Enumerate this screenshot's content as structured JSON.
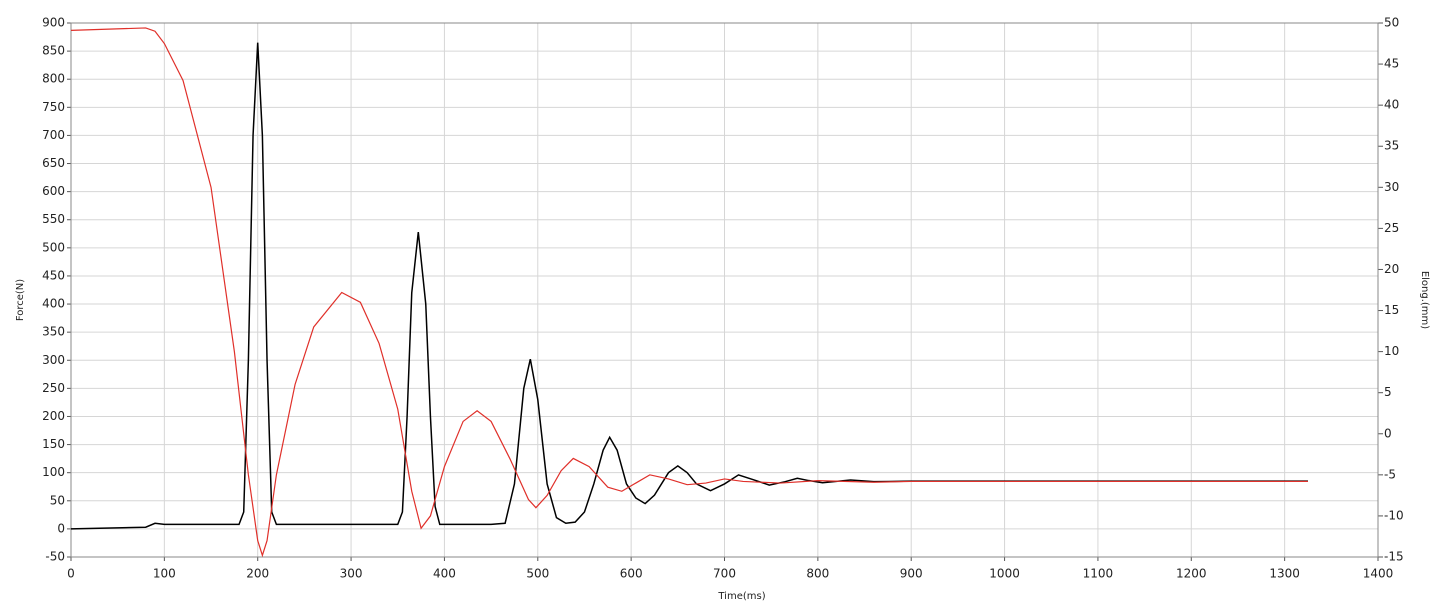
{
  "chart_data": {
    "type": "line",
    "xlabel": "Time(ms)",
    "ylabel": "Force(N)",
    "y2label": "Elong.(mm)",
    "xlim": [
      0,
      1400
    ],
    "xticks": [
      0,
      100,
      200,
      300,
      400,
      500,
      600,
      700,
      800,
      900,
      1000,
      1100,
      1200,
      1300,
      1400
    ],
    "ylim": [
      -50,
      900
    ],
    "yticks": [
      -50,
      0,
      50,
      100,
      150,
      200,
      250,
      300,
      350,
      400,
      450,
      500,
      550,
      600,
      650,
      700,
      750,
      800,
      850,
      900
    ],
    "y2lim": [
      -15,
      50
    ],
    "y2ticks": [
      -15,
      -10,
      -5,
      0,
      5,
      10,
      15,
      20,
      25,
      30,
      35,
      40,
      45,
      50
    ],
    "grid": true,
    "series": [
      {
        "color": "#000000",
        "x": [
          0,
          80,
          90,
          100,
          180,
          185,
          190,
          195,
          200,
          205,
          210,
          215,
          220,
          350,
          355,
          360,
          365,
          372,
          380,
          385,
          390,
          395,
          450,
          465,
          475,
          485,
          492,
          500,
          510,
          520,
          530,
          540,
          550,
          560,
          570,
          577,
          585,
          595,
          605,
          615,
          625,
          640,
          650,
          660,
          670,
          685,
          700,
          715,
          730,
          748,
          765,
          778,
          790,
          805,
          835,
          860,
          900,
          1000,
          1100,
          1200,
          1325
        ],
        "values": [
          0,
          3,
          10,
          8,
          8,
          30,
          300,
          700,
          865,
          700,
          300,
          30,
          8,
          8,
          30,
          200,
          420,
          528,
          400,
          200,
          40,
          8,
          8,
          10,
          80,
          250,
          302,
          230,
          80,
          20,
          10,
          12,
          30,
          80,
          140,
          163,
          140,
          80,
          55,
          45,
          60,
          100,
          112,
          100,
          80,
          68,
          80,
          96,
          88,
          78,
          84,
          90,
          86,
          82,
          87,
          84,
          85,
          85,
          85,
          85,
          85
        ]
      },
      {
        "color": "#e0302a",
        "axis": "y2",
        "x": [
          0,
          80,
          90,
          100,
          120,
          150,
          175,
          190,
          200,
          205,
          210,
          220,
          240,
          260,
          290,
          310,
          330,
          350,
          365,
          375,
          385,
          400,
          420,
          435,
          450,
          470,
          490,
          498,
          510,
          525,
          538,
          555,
          575,
          590,
          605,
          620,
          640,
          660,
          680,
          700,
          720,
          760,
          800,
          860,
          900,
          1000,
          1100,
          1325
        ],
        "values": [
          49.1,
          49.4,
          49,
          47.5,
          43,
          30,
          10,
          -5,
          -13,
          -14.8,
          -13,
          -5,
          6,
          13,
          17.2,
          16,
          11,
          3,
          -7,
          -11.5,
          -10,
          -4,
          1.5,
          2.8,
          1.5,
          -3,
          -8,
          -9,
          -7.5,
          -4.5,
          -3,
          -4,
          -6.5,
          -7,
          -6,
          -5,
          -5.5,
          -6.2,
          -6,
          -5.5,
          -5.8,
          -6,
          -5.7,
          -5.9,
          -5.8,
          -5.8,
          -5.8,
          -5.8
        ]
      }
    ]
  }
}
